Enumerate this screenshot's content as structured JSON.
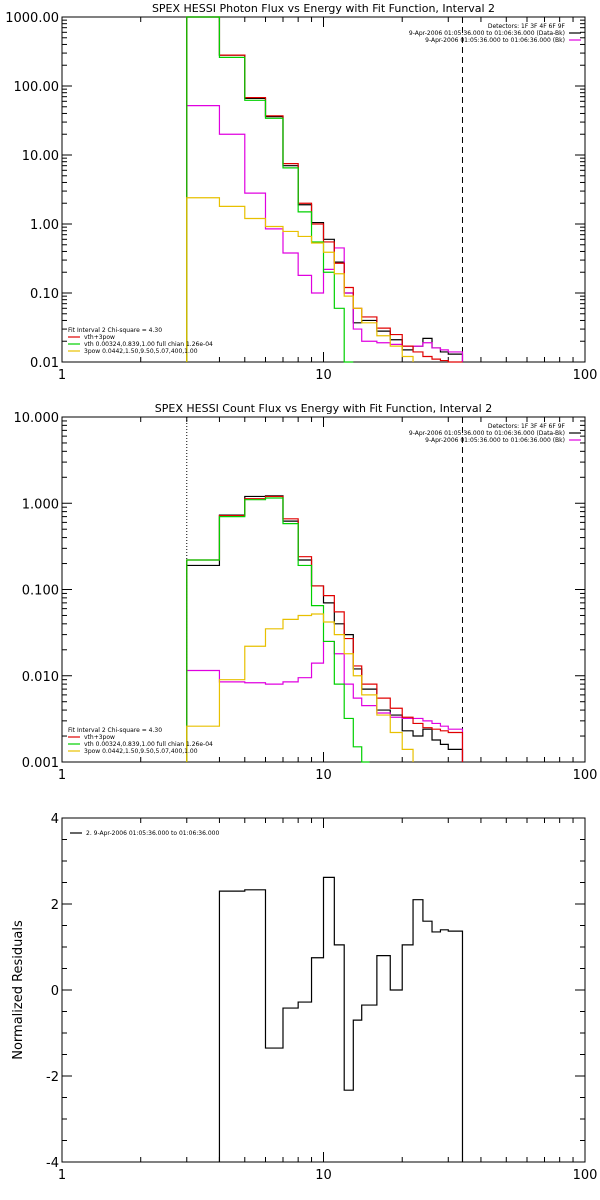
{
  "chart_data": [
    {
      "type": "line",
      "title": "SPEX HESSI Photon Flux vs Energy with Fit Function, Interval 2",
      "xscale": "log",
      "yscale": "log",
      "xlim": [
        1,
        100
      ],
      "ylim": [
        0.01,
        1000
      ],
      "xticks": [
        1,
        10,
        100
      ],
      "xtick_labels": [
        "1",
        "10",
        "100"
      ],
      "yticks": [
        0.01,
        0.1,
        1,
        10,
        100,
        1000
      ],
      "ytick_labels": [
        "0.01",
        "0.10",
        "1.00",
        "10.00",
        "100.00",
        "1000.00"
      ],
      "vlines": [
        {
          "x": 3.0,
          "style": "solid",
          "color": "#E8C000"
        },
        {
          "x": 34.0,
          "style": "dashed",
          "color": "#000000"
        }
      ],
      "header_lines": [
        "Detectors: 1F 3F 4F 6F 9F",
        "9-Apr-2006 01:05:36.000 to 01:06:36.000 (Data-Bk)",
        "9-Apr-2006 01:05:36.000 to 01:06:36.000 (Bk)"
      ],
      "header_colors": [
        "",
        "#000000",
        "#E000E0"
      ],
      "legend_title": "Fit Interval 2   Chi-square = 4.30",
      "legend_position": "bottom-left",
      "series": [
        {
          "name": "vth+3pow",
          "color": "#E00000",
          "edges": [
            3,
            4,
            5,
            6,
            7,
            8,
            9,
            10,
            11,
            12,
            13,
            14,
            16,
            18,
            20,
            22,
            24,
            26,
            28,
            30,
            34
          ],
          "values": [
            1000,
            280,
            68,
            37,
            7.5,
            2.0,
            1.0,
            0.55,
            0.27,
            0.12,
            0.06,
            0.045,
            0.031,
            0.025,
            0.017,
            0.014,
            0.012,
            0.011,
            0.0105,
            0.01
          ]
        },
        {
          "name": "vth 0.00324,0.839,1.00  full chian 1.26e-04",
          "color": "#00D000",
          "edges": [
            3,
            4,
            5,
            6,
            7,
            8,
            9,
            10,
            11,
            12,
            13
          ],
          "values": [
            1000,
            260,
            62,
            34,
            6.5,
            1.5,
            0.55,
            0.2,
            0.06,
            0.01
          ]
        },
        {
          "name": "3pow 0.0442,1.50,9.50,5.07,400,1.00",
          "color": "#E8C000",
          "edges": [
            3,
            4,
            5,
            6,
            7,
            8,
            9,
            10,
            11,
            12,
            13,
            14,
            16,
            18,
            20,
            22
          ],
          "values": [
            2.4,
            1.8,
            1.2,
            0.92,
            0.78,
            0.66,
            0.53,
            0.39,
            0.19,
            0.09,
            0.06,
            0.037,
            0.024,
            0.017,
            0.012
          ]
        }
      ],
      "extra_series": [
        {
          "color": "#000000",
          "edges": [
            3,
            4,
            5,
            6,
            7,
            8,
            9,
            10,
            11,
            12,
            13,
            14,
            16,
            18,
            20,
            22,
            24,
            26,
            28,
            30,
            34
          ],
          "values": [
            1000,
            280,
            66,
            36,
            7.0,
            1.9,
            1.05,
            0.6,
            0.28,
            0.1,
            0.037,
            0.04,
            0.028,
            0.021,
            0.015,
            0.017,
            0.022,
            0.016,
            0.014,
            0.013
          ]
        },
        {
          "color": "#E000E0",
          "edges": [
            3,
            4,
            5,
            6,
            7,
            8,
            9,
            10,
            11,
            12,
            13,
            14,
            16,
            18,
            20,
            22,
            24,
            26,
            28,
            30,
            34
          ],
          "values": [
            52,
            20,
            2.8,
            0.85,
            0.38,
            0.18,
            0.1,
            0.22,
            0.45,
            0.1,
            0.03,
            0.02,
            0.019,
            0.018,
            0.017,
            0.017,
            0.019,
            0.016,
            0.015,
            0.014
          ]
        }
      ]
    },
    {
      "type": "line",
      "title": "SPEX HESSI Count Flux vs Energy with Fit Function, Interval 2",
      "xscale": "log",
      "yscale": "log",
      "xlim": [
        1,
        100
      ],
      "ylim": [
        0.001,
        10
      ],
      "xticks": [
        1,
        10,
        100
      ],
      "xtick_labels": [
        "1",
        "10",
        "100"
      ],
      "yticks": [
        0.001,
        0.01,
        0.1,
        1,
        10
      ],
      "ytick_labels": [
        "0.001",
        "0.010",
        "0.100",
        "1.000",
        "10.000"
      ],
      "vlines": [
        {
          "x": 3.0,
          "style": "dotted",
          "color": "#000000"
        },
        {
          "x": 34.0,
          "style": "dashed",
          "color": "#000000"
        }
      ],
      "header_lines": [
        "Detectors: 1F 3F 4F 6F 9F",
        "9-Apr-2006 01:05:36.000 to 01:06:36.000 (Data-Bk)",
        "9-Apr-2006 01:05:36.000 to 01:06:36.000 (Bk)"
      ],
      "header_colors": [
        "",
        "#000000",
        "#E000E0"
      ],
      "legend_title": "Fit Interval 2   Chi-square = 4.30",
      "legend_position": "bottom-left",
      "series": [
        {
          "name": "vth+3pow",
          "color": "#E00000",
          "edges": [
            3,
            4,
            5,
            6,
            7,
            8,
            9,
            10,
            11,
            12,
            13,
            14,
            16,
            18,
            20,
            22,
            24,
            26,
            28,
            30,
            34
          ],
          "values": [
            0.22,
            0.72,
            1.13,
            1.2,
            0.66,
            0.24,
            0.11,
            0.085,
            0.055,
            0.027,
            0.013,
            0.008,
            0.0055,
            0.0042,
            0.0033,
            0.0028,
            0.0025,
            0.0024,
            0.0023,
            0.0022
          ]
        },
        {
          "name": "vth 0.00324,0.839,1.00  full chian 1.26e-04",
          "color": "#00D000",
          "edges": [
            3,
            4,
            5,
            6,
            7,
            8,
            9,
            10,
            11,
            12,
            13,
            14,
            15
          ],
          "values": [
            0.22,
            0.7,
            1.1,
            1.15,
            0.58,
            0.19,
            0.065,
            0.025,
            0.008,
            0.0032,
            0.0015,
            0.001
          ]
        },
        {
          "name": "3pow 0.0442,1.50,9.50,5.07,400,1.00",
          "color": "#E8C000",
          "edges": [
            3,
            4,
            5,
            6,
            7,
            8,
            9,
            10,
            11,
            12,
            13,
            14,
            16,
            18,
            20,
            22
          ],
          "values": [
            0.0026,
            0.009,
            0.022,
            0.035,
            0.045,
            0.05,
            0.052,
            0.042,
            0.03,
            0.018,
            0.01,
            0.006,
            0.0035,
            0.0022,
            0.0014
          ]
        }
      ],
      "extra_series": [
        {
          "color": "#000000",
          "edges": [
            3,
            4,
            5,
            6,
            7,
            8,
            9,
            10,
            11,
            12,
            13,
            14,
            16,
            18,
            20,
            22,
            24,
            26,
            28,
            30,
            34
          ],
          "values": [
            0.19,
            0.73,
            1.2,
            1.22,
            0.62,
            0.22,
            0.11,
            0.07,
            0.04,
            0.03,
            0.012,
            0.007,
            0.004,
            0.0035,
            0.0023,
            0.002,
            0.0024,
            0.0018,
            0.0016,
            0.0014
          ]
        },
        {
          "color": "#E000E0",
          "edges": [
            3,
            4,
            5,
            6,
            7,
            8,
            9,
            10,
            11,
            12,
            13,
            14,
            16,
            18,
            20,
            22,
            24,
            26,
            28,
            30,
            34
          ],
          "values": [
            0.0115,
            0.0085,
            0.0083,
            0.008,
            0.0085,
            0.0095,
            0.014,
            0.025,
            0.018,
            0.008,
            0.0055,
            0.0045,
            0.0037,
            0.0033,
            0.0032,
            0.0032,
            0.003,
            0.0028,
            0.0026,
            0.0024
          ]
        }
      ]
    },
    {
      "type": "line",
      "title": "",
      "xscale": "log",
      "yscale": "linear",
      "xlim": [
        1,
        100
      ],
      "ylim": [
        -4,
        4
      ],
      "xticks": [
        1,
        10,
        100
      ],
      "xtick_labels": [
        "1",
        "10",
        "100"
      ],
      "yticks": [
        -4,
        -2,
        0,
        2,
        4
      ],
      "ytick_labels": [
        "-4",
        "-2",
        "0",
        "2",
        "4"
      ],
      "ylabel": "Normalized Residuals",
      "legend_position": "top-left",
      "series": [
        {
          "name": "2.  9-Apr-2006 01:05:36.000 to 01:06:36.000",
          "color": "#000000",
          "edges": [
            4,
            5,
            6,
            7,
            8,
            9,
            10,
            11,
            12,
            13,
            14,
            16,
            18,
            20,
            22,
            24,
            26,
            28,
            30,
            34
          ],
          "values": [
            2.3,
            2.33,
            -1.35,
            -0.42,
            -0.28,
            0.75,
            2.62,
            1.05,
            -2.33,
            -0.7,
            -0.35,
            0.8,
            0.0,
            1.05,
            2.1,
            1.6,
            1.35,
            1.4,
            1.37
          ],
          "drop_ends_to_ymin": true
        }
      ]
    }
  ]
}
